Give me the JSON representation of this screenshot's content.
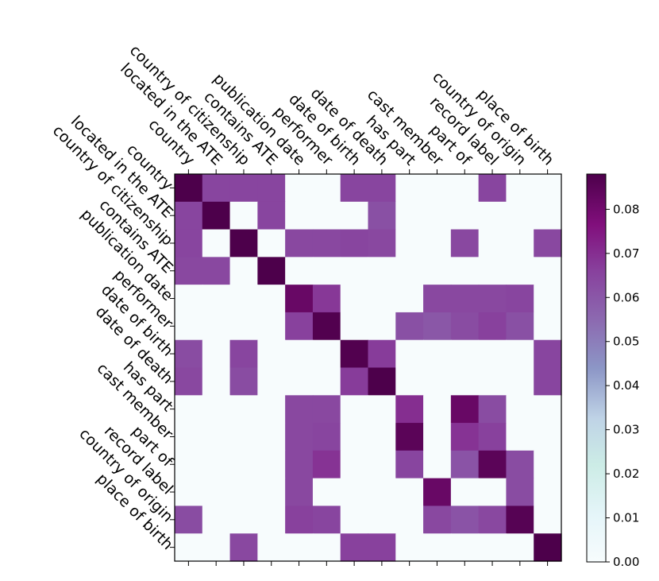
{
  "chart_data": {
    "type": "heatmap",
    "title": "",
    "xlabel": "",
    "ylabel": "",
    "labels": [
      "country",
      "located in the ATE",
      "country of citizenship",
      "contains ATE",
      "publication date",
      "performer",
      "date of birth",
      "date of death",
      "has part",
      "cast member",
      "part of",
      "record label",
      "country of origin",
      "place of birth"
    ],
    "matrix": [
      [
        0.088,
        0.065,
        0.065,
        0.065,
        0,
        0,
        0.065,
        0.065,
        0,
        0,
        0,
        0.065,
        0,
        0
      ],
      [
        0.065,
        0.088,
        0,
        0.065,
        0,
        0,
        0,
        0.062,
        0,
        0,
        0,
        0,
        0,
        0
      ],
      [
        0.065,
        0,
        0.088,
        0,
        0.064,
        0.064,
        0.065,
        0.064,
        0,
        0,
        0.064,
        0,
        0,
        0.064
      ],
      [
        0.064,
        0.064,
        0,
        0.088,
        0,
        0,
        0,
        0,
        0,
        0,
        0,
        0,
        0,
        0
      ],
      [
        0,
        0,
        0,
        0,
        0.082,
        0.068,
        0,
        0,
        0,
        0.064,
        0.064,
        0.064,
        0.065,
        0
      ],
      [
        0,
        0,
        0,
        0,
        0.066,
        0.087,
        0,
        0,
        0.062,
        0.06,
        0.063,
        0.066,
        0.062,
        0
      ],
      [
        0.063,
        0,
        0.065,
        0,
        0,
        0,
        0.087,
        0.067,
        0,
        0,
        0,
        0,
        0,
        0.065
      ],
      [
        0.064,
        0,
        0.063,
        0,
        0,
        0,
        0.067,
        0.088,
        0,
        0,
        0,
        0,
        0,
        0.065
      ],
      [
        0,
        0,
        0,
        0,
        0.064,
        0.064,
        0,
        0,
        0.07,
        0,
        0.082,
        0.063,
        0,
        0
      ],
      [
        0,
        0,
        0,
        0,
        0.064,
        0.065,
        0,
        0,
        0.085,
        0,
        0.069,
        0.066,
        0,
        0
      ],
      [
        0,
        0,
        0,
        0,
        0.064,
        0.069,
        0,
        0,
        0.065,
        0,
        0.061,
        0.085,
        0.063,
        0
      ],
      [
        0,
        0,
        0,
        0,
        0.064,
        0,
        0,
        0,
        0,
        0.082,
        0,
        0,
        0.063,
        0
      ],
      [
        0.063,
        0,
        0,
        0,
        0.066,
        0.065,
        0,
        0,
        0,
        0.064,
        0.061,
        0.064,
        0.086,
        0
      ],
      [
        0,
        0,
        0.064,
        0,
        0,
        0,
        0.066,
        0.066,
        0,
        0,
        0,
        0,
        0,
        0.088
      ]
    ],
    "colorbar": {
      "min": 0,
      "max": 0.088,
      "ticks": [
        "0.00",
        "0.01",
        "0.02",
        "0.03",
        "0.04",
        "0.05",
        "0.06",
        "0.07",
        "0.08"
      ],
      "colormap": "BuPu"
    },
    "grid": false,
    "legend": "none"
  }
}
